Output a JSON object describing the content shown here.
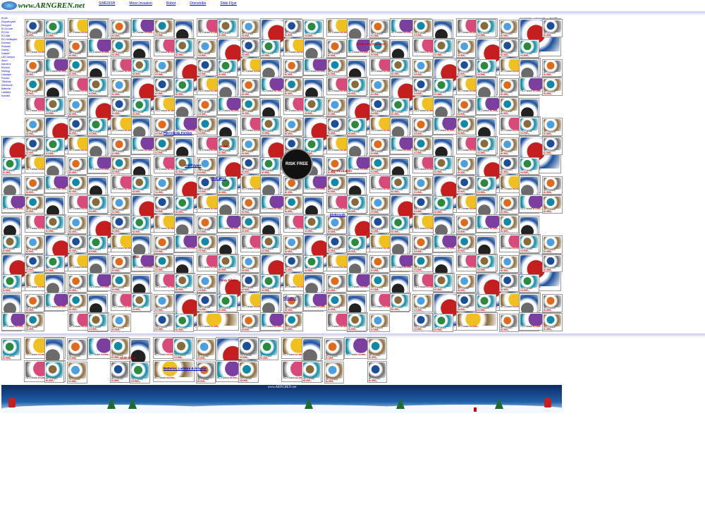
{
  "header": {
    "logo_text": "www.ARNGREN.net",
    "links": [
      "SWEDISH",
      "Moon Invasion",
      "Robot",
      "Dronstråle",
      "Slide Flyer"
    ]
  },
  "right_links": [
    "Kontakt",
    "Search",
    "Språk"
  ],
  "leftnav": [
    "El-Bil",
    "Elsparkcykel",
    "Elmoped",
    "El-Go-kart",
    "RC-Bil",
    "RC-Båt",
    "RC-Helikopter",
    "Drönare",
    "Robotar",
    "Hobby",
    "Dräkter",
    "LED-lampor",
    "Sport",
    "Kameror",
    "Klockor",
    "Verktyg",
    "Leksaker",
    "Fordon",
    "Tillbehör",
    "Elektronik",
    "Batterier",
    "Laddare",
    "Kontakt"
  ],
  "headlines": [
    {
      "text": "Drone-Fly Kameror",
      "blue": false
    },
    {
      "text": "Fjärrstyrda Fordon",
      "blue": true
    },
    {
      "text": "RC-Produkter",
      "blue": false
    },
    {
      "text": "Batterier, Laddare & Adapter",
      "blue": true
    },
    {
      "text": "Slide Flyer",
      "blue": false
    },
    {
      "text": "Star Wars",
      "blue": true
    },
    {
      "text": "Hobby",
      "blue": false
    },
    {
      "text": "Elektronik",
      "blue": true
    },
    {
      "text": "Sexy Piloter",
      "blue": false
    },
    {
      "text": "Kameror",
      "blue": true
    },
    {
      "text": "Elbil",
      "blue": false
    },
    {
      "text": "Glidflygare",
      "blue": true
    }
  ],
  "risk_badge": "RISK FREE",
  "banner_caption": "www.ARNGREN.net",
  "tile_colors": [
    "#c41e1e",
    "#1b4f9c",
    "#2b8a3e",
    "#f0c020",
    "#6b6b6b",
    "#e06a1a",
    "#7b3fa0",
    "#0e8aa8",
    "#222222",
    "#d84a7a",
    "#8a6a3a",
    "#4aa0e0"
  ],
  "tile_caption": "RC-Fordon",
  "tile_price": "Kr.999,-"
}
